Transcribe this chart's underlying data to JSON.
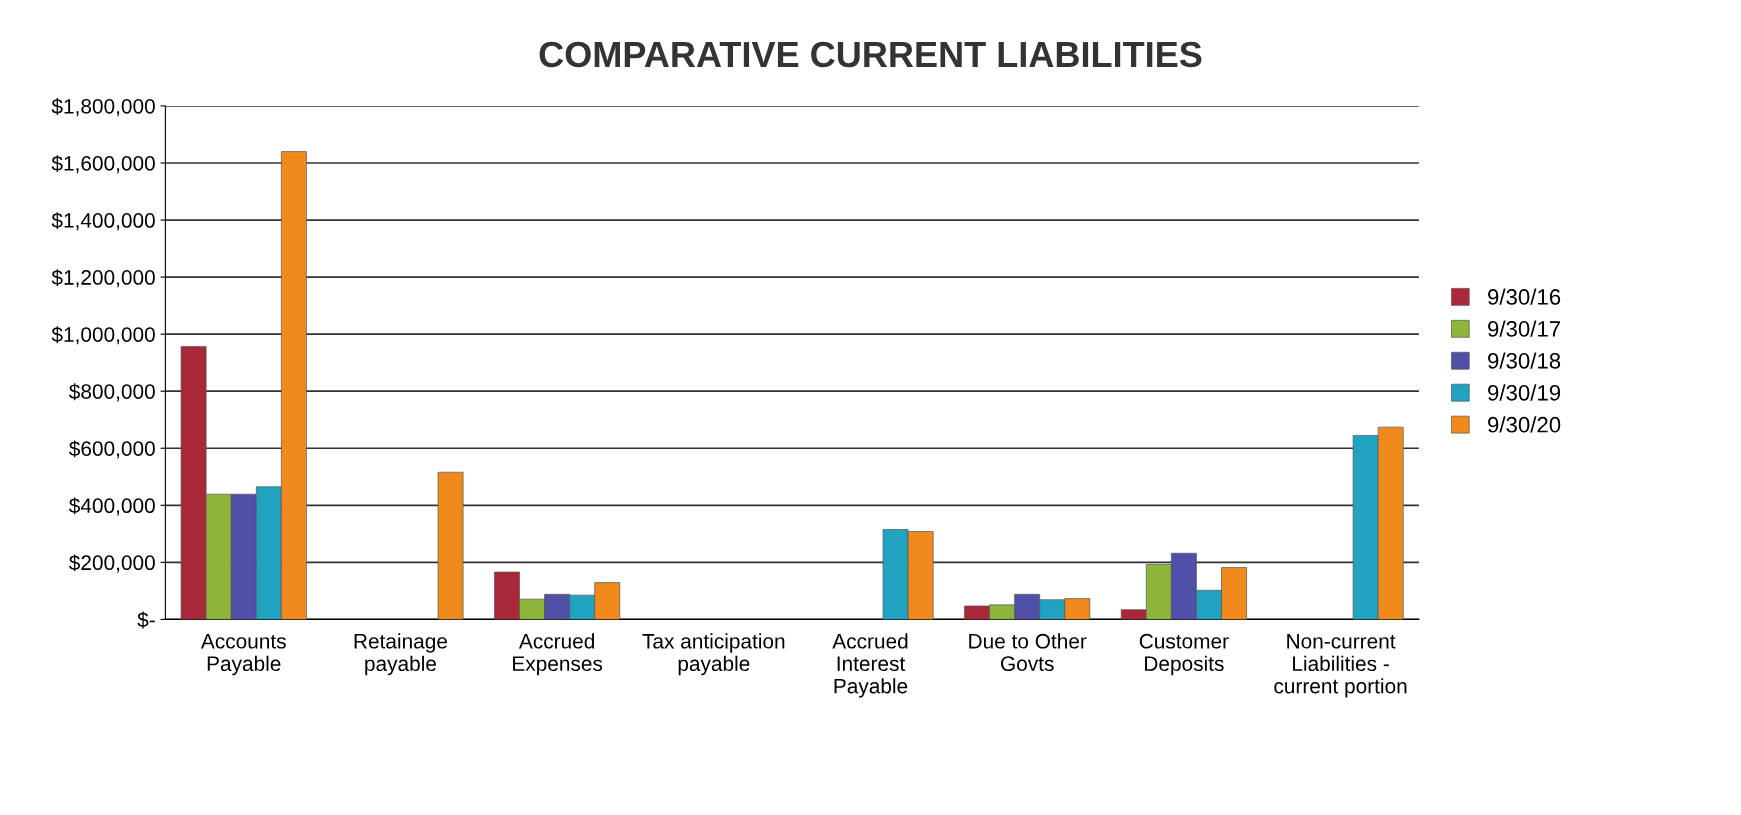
{
  "chart_data": {
    "type": "bar",
    "title": "COMPARATIVE CURRENT LIABILITIES",
    "categories": [
      "Accounts\nPayable",
      "Retainage\npayable",
      "Accrued\nExpenses",
      "Tax anticipation\npayable",
      "Accrued\nInterest\nPayable",
      "Due to Other\nGovts",
      "Customer\nDeposits",
      "Non-current\nLiabilities -\ncurrent portion"
    ],
    "series": [
      {
        "name": "9/30/16",
        "color": "#a8283a",
        "values": [
          957000,
          null,
          166000,
          null,
          null,
          47000,
          34000,
          null
        ]
      },
      {
        "name": "9/30/17",
        "color": "#8db53c",
        "values": [
          439000,
          null,
          71000,
          null,
          null,
          51000,
          193000,
          null
        ]
      },
      {
        "name": "9/30/18",
        "color": "#5050a8",
        "values": [
          439000,
          null,
          88000,
          null,
          null,
          88000,
          232000,
          null
        ]
      },
      {
        "name": "9/30/19",
        "color": "#1fa3c0",
        "values": [
          465000,
          null,
          85000,
          null,
          315000,
          69000,
          102000,
          645000
        ]
      },
      {
        "name": "9/30/20",
        "color": "#f08a1c",
        "values": [
          1640000,
          516000,
          129000,
          null,
          308000,
          73000,
          182000,
          674000
        ]
      }
    ],
    "ylim": [
      0,
      1800000
    ],
    "yticks": [
      {
        "value": 0,
        "label": "$-"
      },
      {
        "value": 200000,
        "label": "$200,000"
      },
      {
        "value": 400000,
        "label": "$400,000"
      },
      {
        "value": 600000,
        "label": "$600,000"
      },
      {
        "value": 800000,
        "label": "$800,000"
      },
      {
        "value": 1000000,
        "label": "$1,000,000"
      },
      {
        "value": 1200000,
        "label": "$1,200,000"
      },
      {
        "value": 1400000,
        "label": "$1,400,000"
      },
      {
        "value": 1600000,
        "label": "$1,600,000"
      },
      {
        "value": 1800000,
        "label": "$1,800,000"
      }
    ],
    "grid": "y",
    "legend": "right"
  }
}
